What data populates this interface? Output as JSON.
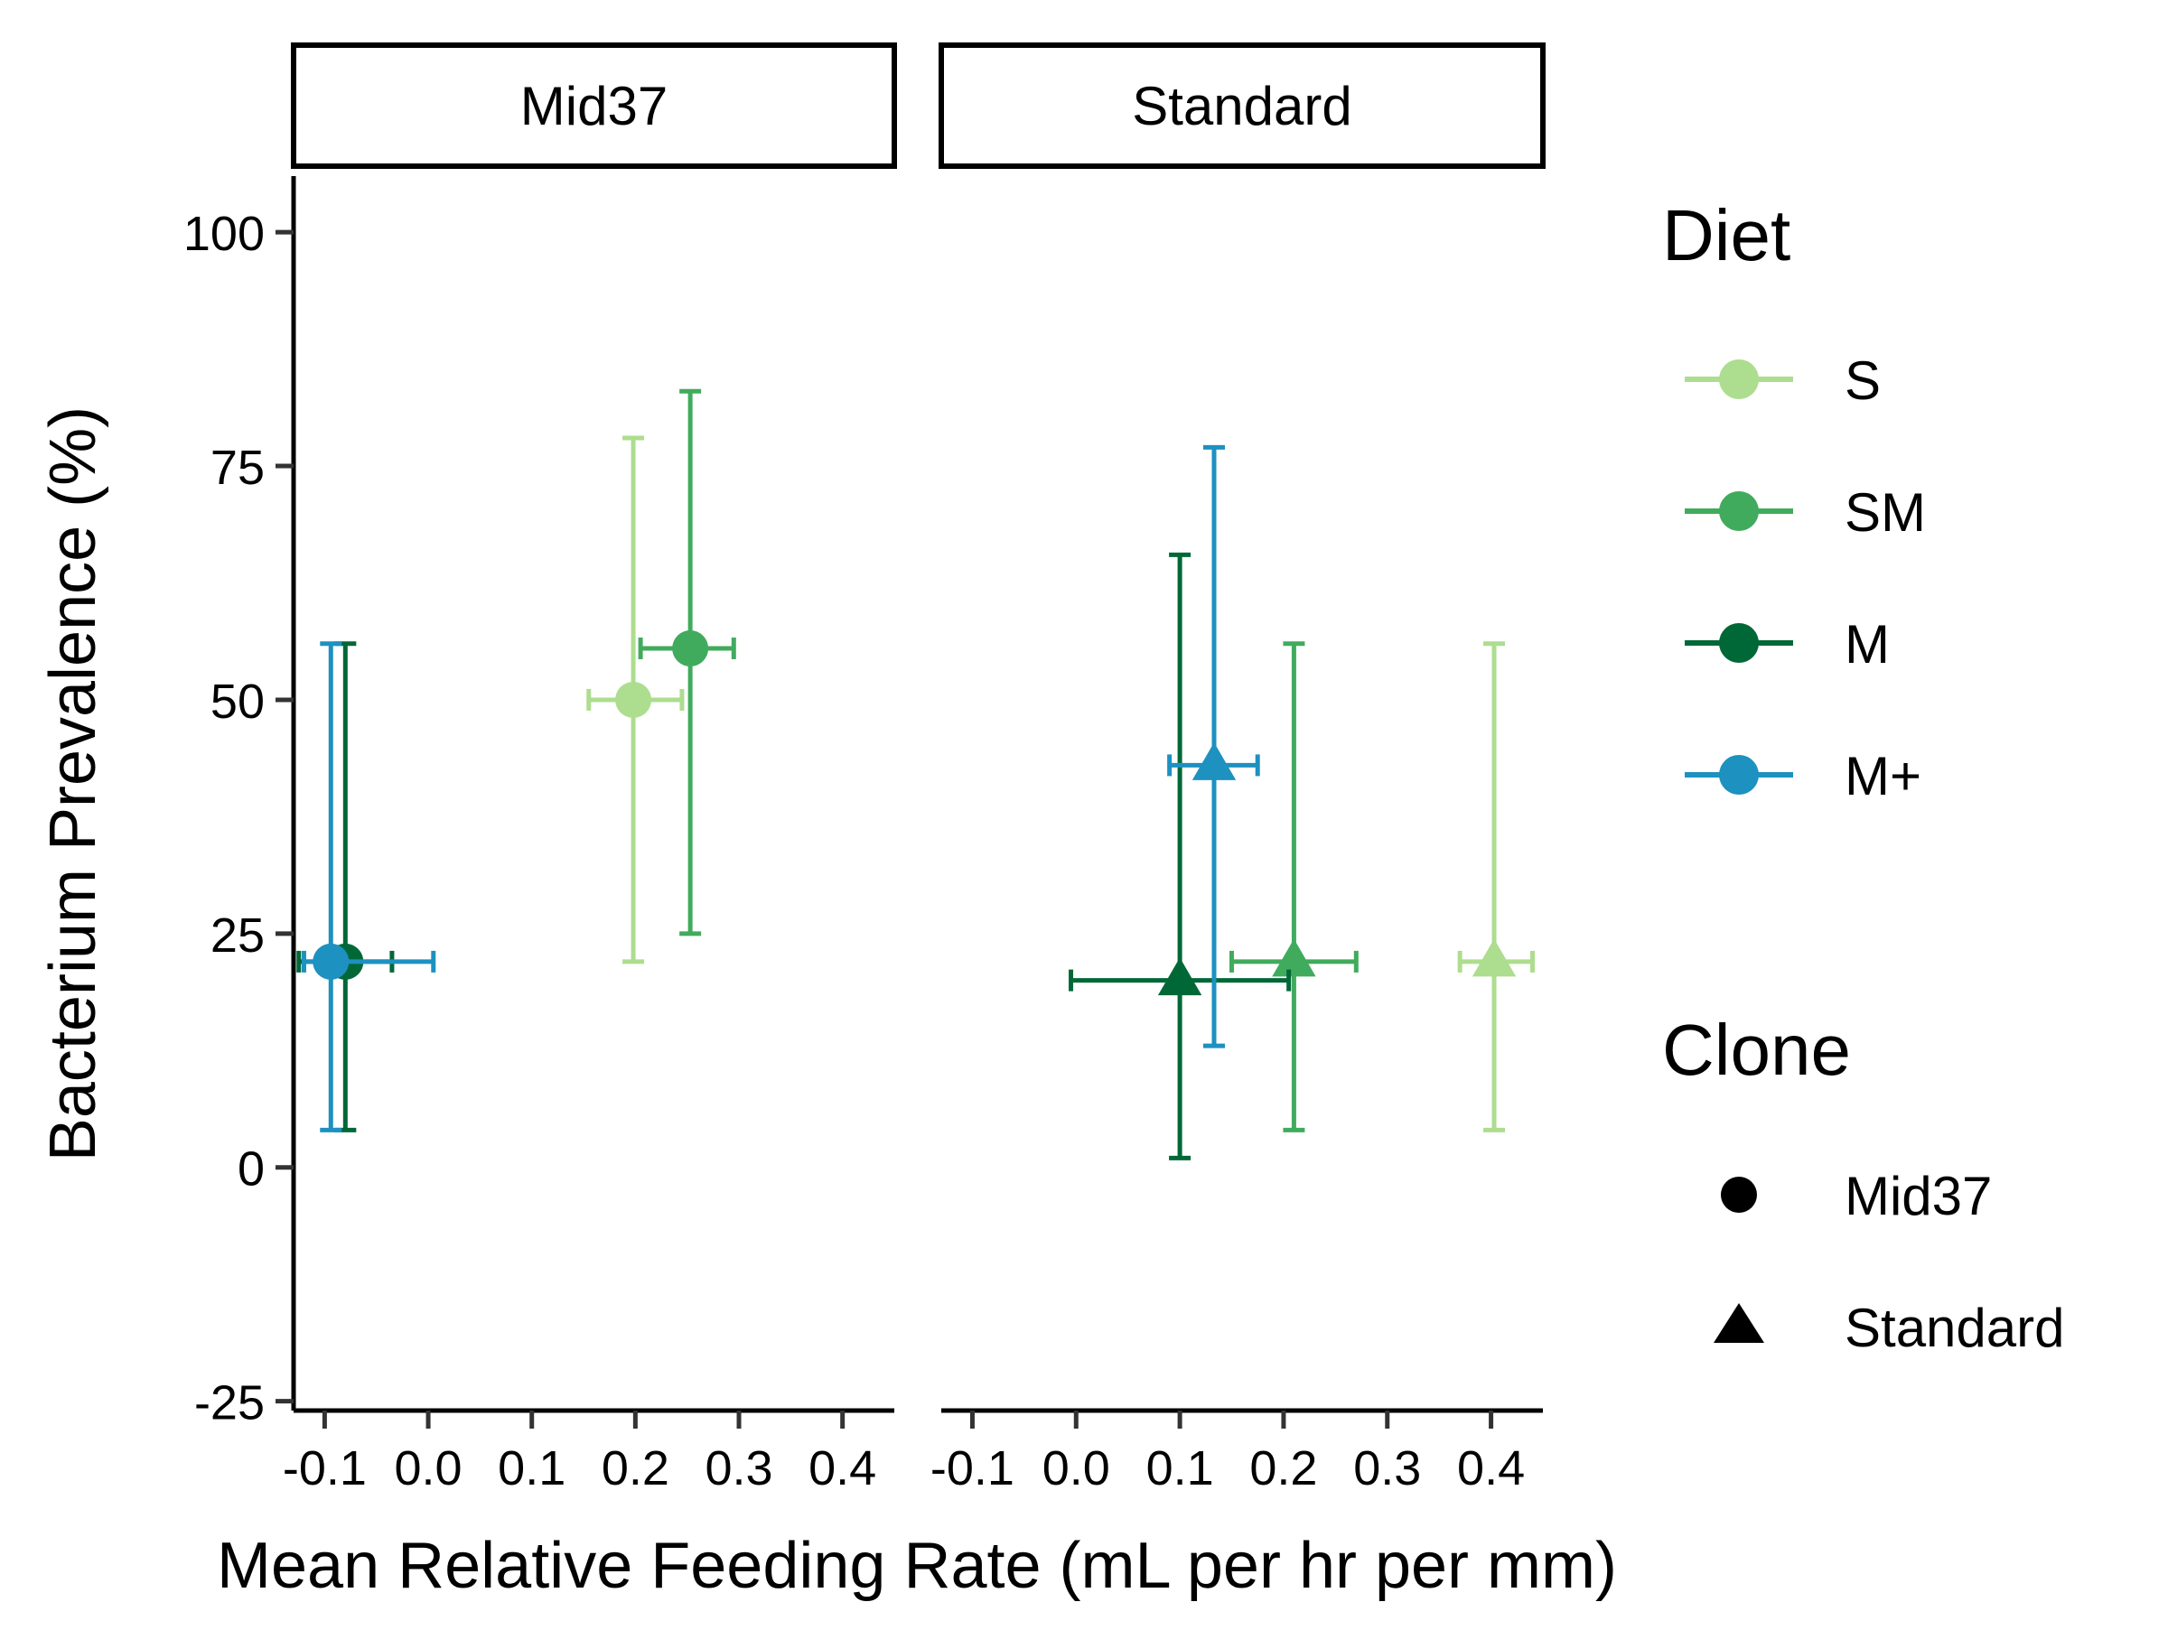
{
  "chart_data": {
    "type": "scatter",
    "xlabel": "Mean Relative Feeding Rate (mL per hr per mm)",
    "ylabel": "Bacterium Prevalence (%)",
    "xlim": [
      -0.13,
      0.45
    ],
    "ylim": [
      -26,
      106
    ],
    "x_ticks": [
      -0.1,
      0.0,
      0.1,
      0.2,
      0.3,
      0.4
    ],
    "x_tick_labels": [
      "-0.1",
      "0.0",
      "0.1",
      "0.2",
      "0.3",
      "0.4"
    ],
    "y_ticks": [
      -25,
      0,
      25,
      50,
      75,
      100
    ],
    "y_tick_labels": [
      "-25",
      "0",
      "25",
      "50",
      "75",
      "100"
    ],
    "grid": false,
    "legend_placement": "right",
    "panels": [
      {
        "label": "Mid37",
        "points": [
          {
            "diet": "S",
            "clone": "Mid37",
            "x": 0.198,
            "y": 50,
            "xmin": 0.155,
            "xmax": 0.245,
            "ymin": 22,
            "ymax": 78
          },
          {
            "diet": "SM",
            "clone": "Mid37",
            "x": 0.253,
            "y": 55.5,
            "xmin": 0.205,
            "xmax": 0.295,
            "ymin": 25,
            "ymax": 83
          },
          {
            "diet": "M",
            "clone": "Mid37",
            "x": -0.08,
            "y": 22,
            "xmin": -0.125,
            "xmax": -0.035,
            "ymin": 4,
            "ymax": 56
          },
          {
            "diet": "M+",
            "clone": "Mid37",
            "x": -0.094,
            "y": 22,
            "xmin": -0.12,
            "xmax": 0.005,
            "ymin": 4,
            "ymax": 56
          }
        ]
      },
      {
        "label": "Standard",
        "points": [
          {
            "diet": "S",
            "clone": "Standard",
            "x": 0.403,
            "y": 22,
            "xmin": 0.37,
            "xmax": 0.44,
            "ymin": 4,
            "ymax": 56
          },
          {
            "diet": "SM",
            "clone": "Standard",
            "x": 0.21,
            "y": 22,
            "xmin": 0.15,
            "xmax": 0.27,
            "ymin": 4,
            "ymax": 56
          },
          {
            "diet": "M",
            "clone": "Standard",
            "x": 0.1,
            "y": 20,
            "xmin": -0.005,
            "xmax": 0.205,
            "ymin": 1,
            "ymax": 65.5
          },
          {
            "diet": "M+",
            "clone": "Standard",
            "x": 0.133,
            "y": 43,
            "xmin": 0.09,
            "xmax": 0.175,
            "ymin": 13,
            "ymax": 77
          }
        ]
      }
    ],
    "legend": {
      "diet": {
        "title": "Diet",
        "items": [
          {
            "label": "S",
            "color": "#addd8e"
          },
          {
            "label": "SM",
            "color": "#41ab5d"
          },
          {
            "label": "M",
            "color": "#006837"
          },
          {
            "label": "M+",
            "color": "#1d91c0"
          }
        ]
      },
      "clone": {
        "title": "Clone",
        "items": [
          {
            "label": "Mid37",
            "shape": "circle"
          },
          {
            "label": "Standard",
            "shape": "triangle"
          }
        ]
      }
    }
  }
}
